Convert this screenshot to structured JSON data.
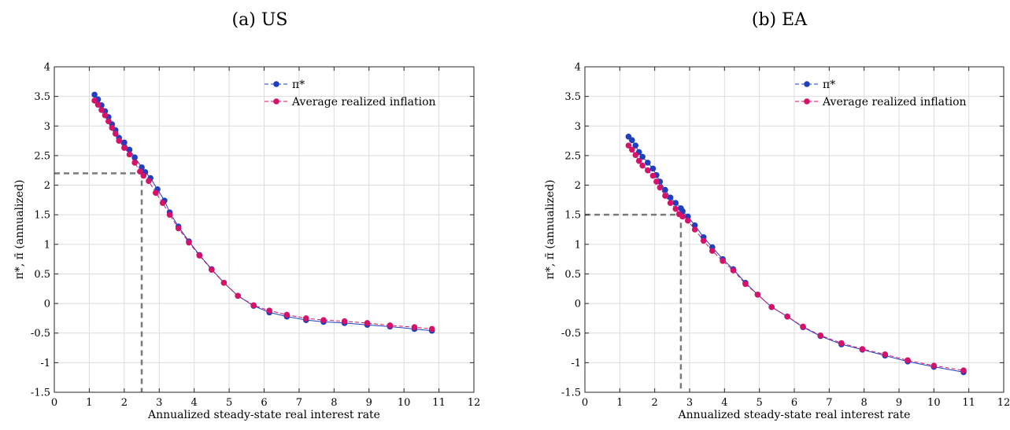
{
  "chart_data": [
    {
      "type": "line",
      "title": "(a) US",
      "xlabel": "Annualized steady-state real interest rate",
      "ylabel": "π*, π̄ (annualized)",
      "xlim": [
        0,
        12
      ],
      "ylim": [
        -1.5,
        4
      ],
      "xticks": [
        "0",
        "1",
        "2",
        "3",
        "4",
        "5",
        "6",
        "7",
        "8",
        "9",
        "10",
        "11",
        "12"
      ],
      "yticks": [
        "-1.5",
        "-1",
        "-0.5",
        "0",
        "0.5",
        "1",
        "1.5",
        "2",
        "2.5",
        "3",
        "3.5",
        "4"
      ],
      "grid": true,
      "legend_position": "top-right",
      "reference": {
        "x": 2.5,
        "y": 2.2
      },
      "series": [
        {
          "name": "π*",
          "color": "#1f3fbf",
          "x": [
            1.15,
            1.25,
            1.35,
            1.45,
            1.55,
            1.65,
            1.75,
            1.85,
            2.0,
            2.15,
            2.3,
            2.5,
            2.6,
            2.75,
            2.95,
            3.15,
            3.3,
            3.55,
            3.85,
            4.15,
            4.5,
            4.85,
            5.25,
            5.7,
            6.15,
            6.65,
            7.2,
            7.7,
            8.3,
            8.95,
            9.6,
            10.3,
            10.8
          ],
          "y": [
            3.53,
            3.45,
            3.35,
            3.25,
            3.15,
            3.03,
            2.93,
            2.8,
            2.72,
            2.6,
            2.47,
            2.3,
            2.22,
            2.12,
            1.93,
            1.74,
            1.54,
            1.3,
            1.05,
            0.82,
            0.58,
            0.35,
            0.13,
            -0.04,
            -0.15,
            -0.22,
            -0.28,
            -0.31,
            -0.33,
            -0.36,
            -0.39,
            -0.43,
            -0.46
          ]
        },
        {
          "name": "Average realized inflation",
          "color": "#d6116a",
          "x": [
            1.15,
            1.25,
            1.35,
            1.45,
            1.55,
            1.65,
            1.75,
            1.85,
            2.0,
            2.15,
            2.3,
            2.45,
            2.55,
            2.7,
            2.9,
            3.1,
            3.3,
            3.55,
            3.85,
            4.15,
            4.5,
            4.85,
            5.25,
            5.7,
            6.15,
            6.65,
            7.2,
            7.7,
            8.3,
            8.95,
            9.6,
            10.3,
            10.8
          ],
          "y": [
            3.43,
            3.36,
            3.27,
            3.18,
            3.08,
            2.97,
            2.87,
            2.75,
            2.63,
            2.52,
            2.38,
            2.23,
            2.16,
            2.07,
            1.87,
            1.7,
            1.5,
            1.27,
            1.03,
            0.81,
            0.57,
            0.35,
            0.13,
            -0.03,
            -0.12,
            -0.19,
            -0.25,
            -0.28,
            -0.3,
            -0.33,
            -0.37,
            -0.4,
            -0.43
          ]
        }
      ]
    },
    {
      "type": "line",
      "title": "(b) EA",
      "xlabel": "Annualized steady-state real interest rate",
      "ylabel": "π*, π̄ (annualized)",
      "xlim": [
        0,
        12
      ],
      "ylim": [
        -1.5,
        4
      ],
      "xticks": [
        "0",
        "1",
        "2",
        "3",
        "4",
        "5",
        "6",
        "7",
        "8",
        "9",
        "10",
        "11",
        "12"
      ],
      "yticks": [
        "-1.5",
        "-1",
        "-0.5",
        "0",
        "0.5",
        "1",
        "1.5",
        "2",
        "2.5",
        "3",
        "3.5",
        "4"
      ],
      "grid": true,
      "legend_position": "top-right",
      "reference": {
        "x": 2.75,
        "y": 1.5
      },
      "series": [
        {
          "name": "π*",
          "color": "#1f3fbf",
          "x": [
            1.25,
            1.35,
            1.45,
            1.55,
            1.65,
            1.8,
            1.95,
            2.05,
            2.15,
            2.3,
            2.45,
            2.6,
            2.75,
            2.8,
            2.95,
            3.15,
            3.4,
            3.65,
            3.95,
            4.25,
            4.6,
            4.95,
            5.35,
            5.8,
            6.25,
            6.75,
            7.35,
            7.95,
            8.6,
            9.25,
            10.0,
            10.85
          ],
          "y": [
            2.82,
            2.76,
            2.67,
            2.56,
            2.48,
            2.38,
            2.28,
            2.17,
            2.06,
            1.92,
            1.79,
            1.7,
            1.61,
            1.56,
            1.47,
            1.32,
            1.12,
            0.95,
            0.75,
            0.58,
            0.35,
            0.15,
            -0.06,
            -0.22,
            -0.4,
            -0.55,
            -0.69,
            -0.78,
            -0.88,
            -0.98,
            -1.07,
            -1.16
          ]
        },
        {
          "name": "Average realized inflation",
          "color": "#d6116a",
          "x": [
            1.25,
            1.35,
            1.45,
            1.55,
            1.65,
            1.8,
            1.95,
            2.05,
            2.15,
            2.3,
            2.45,
            2.6,
            2.7,
            2.8,
            2.95,
            3.15,
            3.4,
            3.65,
            3.95,
            4.25,
            4.6,
            4.95,
            5.35,
            5.8,
            6.25,
            6.75,
            7.35,
            7.95,
            8.6,
            9.25,
            10.0,
            10.85
          ],
          "y": [
            2.67,
            2.6,
            2.51,
            2.41,
            2.33,
            2.25,
            2.16,
            2.06,
            1.96,
            1.82,
            1.7,
            1.6,
            1.51,
            1.47,
            1.4,
            1.25,
            1.06,
            0.89,
            0.72,
            0.56,
            0.33,
            0.15,
            -0.06,
            -0.22,
            -0.39,
            -0.54,
            -0.67,
            -0.77,
            -0.86,
            -0.96,
            -1.05,
            -1.13
          ]
        }
      ]
    }
  ]
}
